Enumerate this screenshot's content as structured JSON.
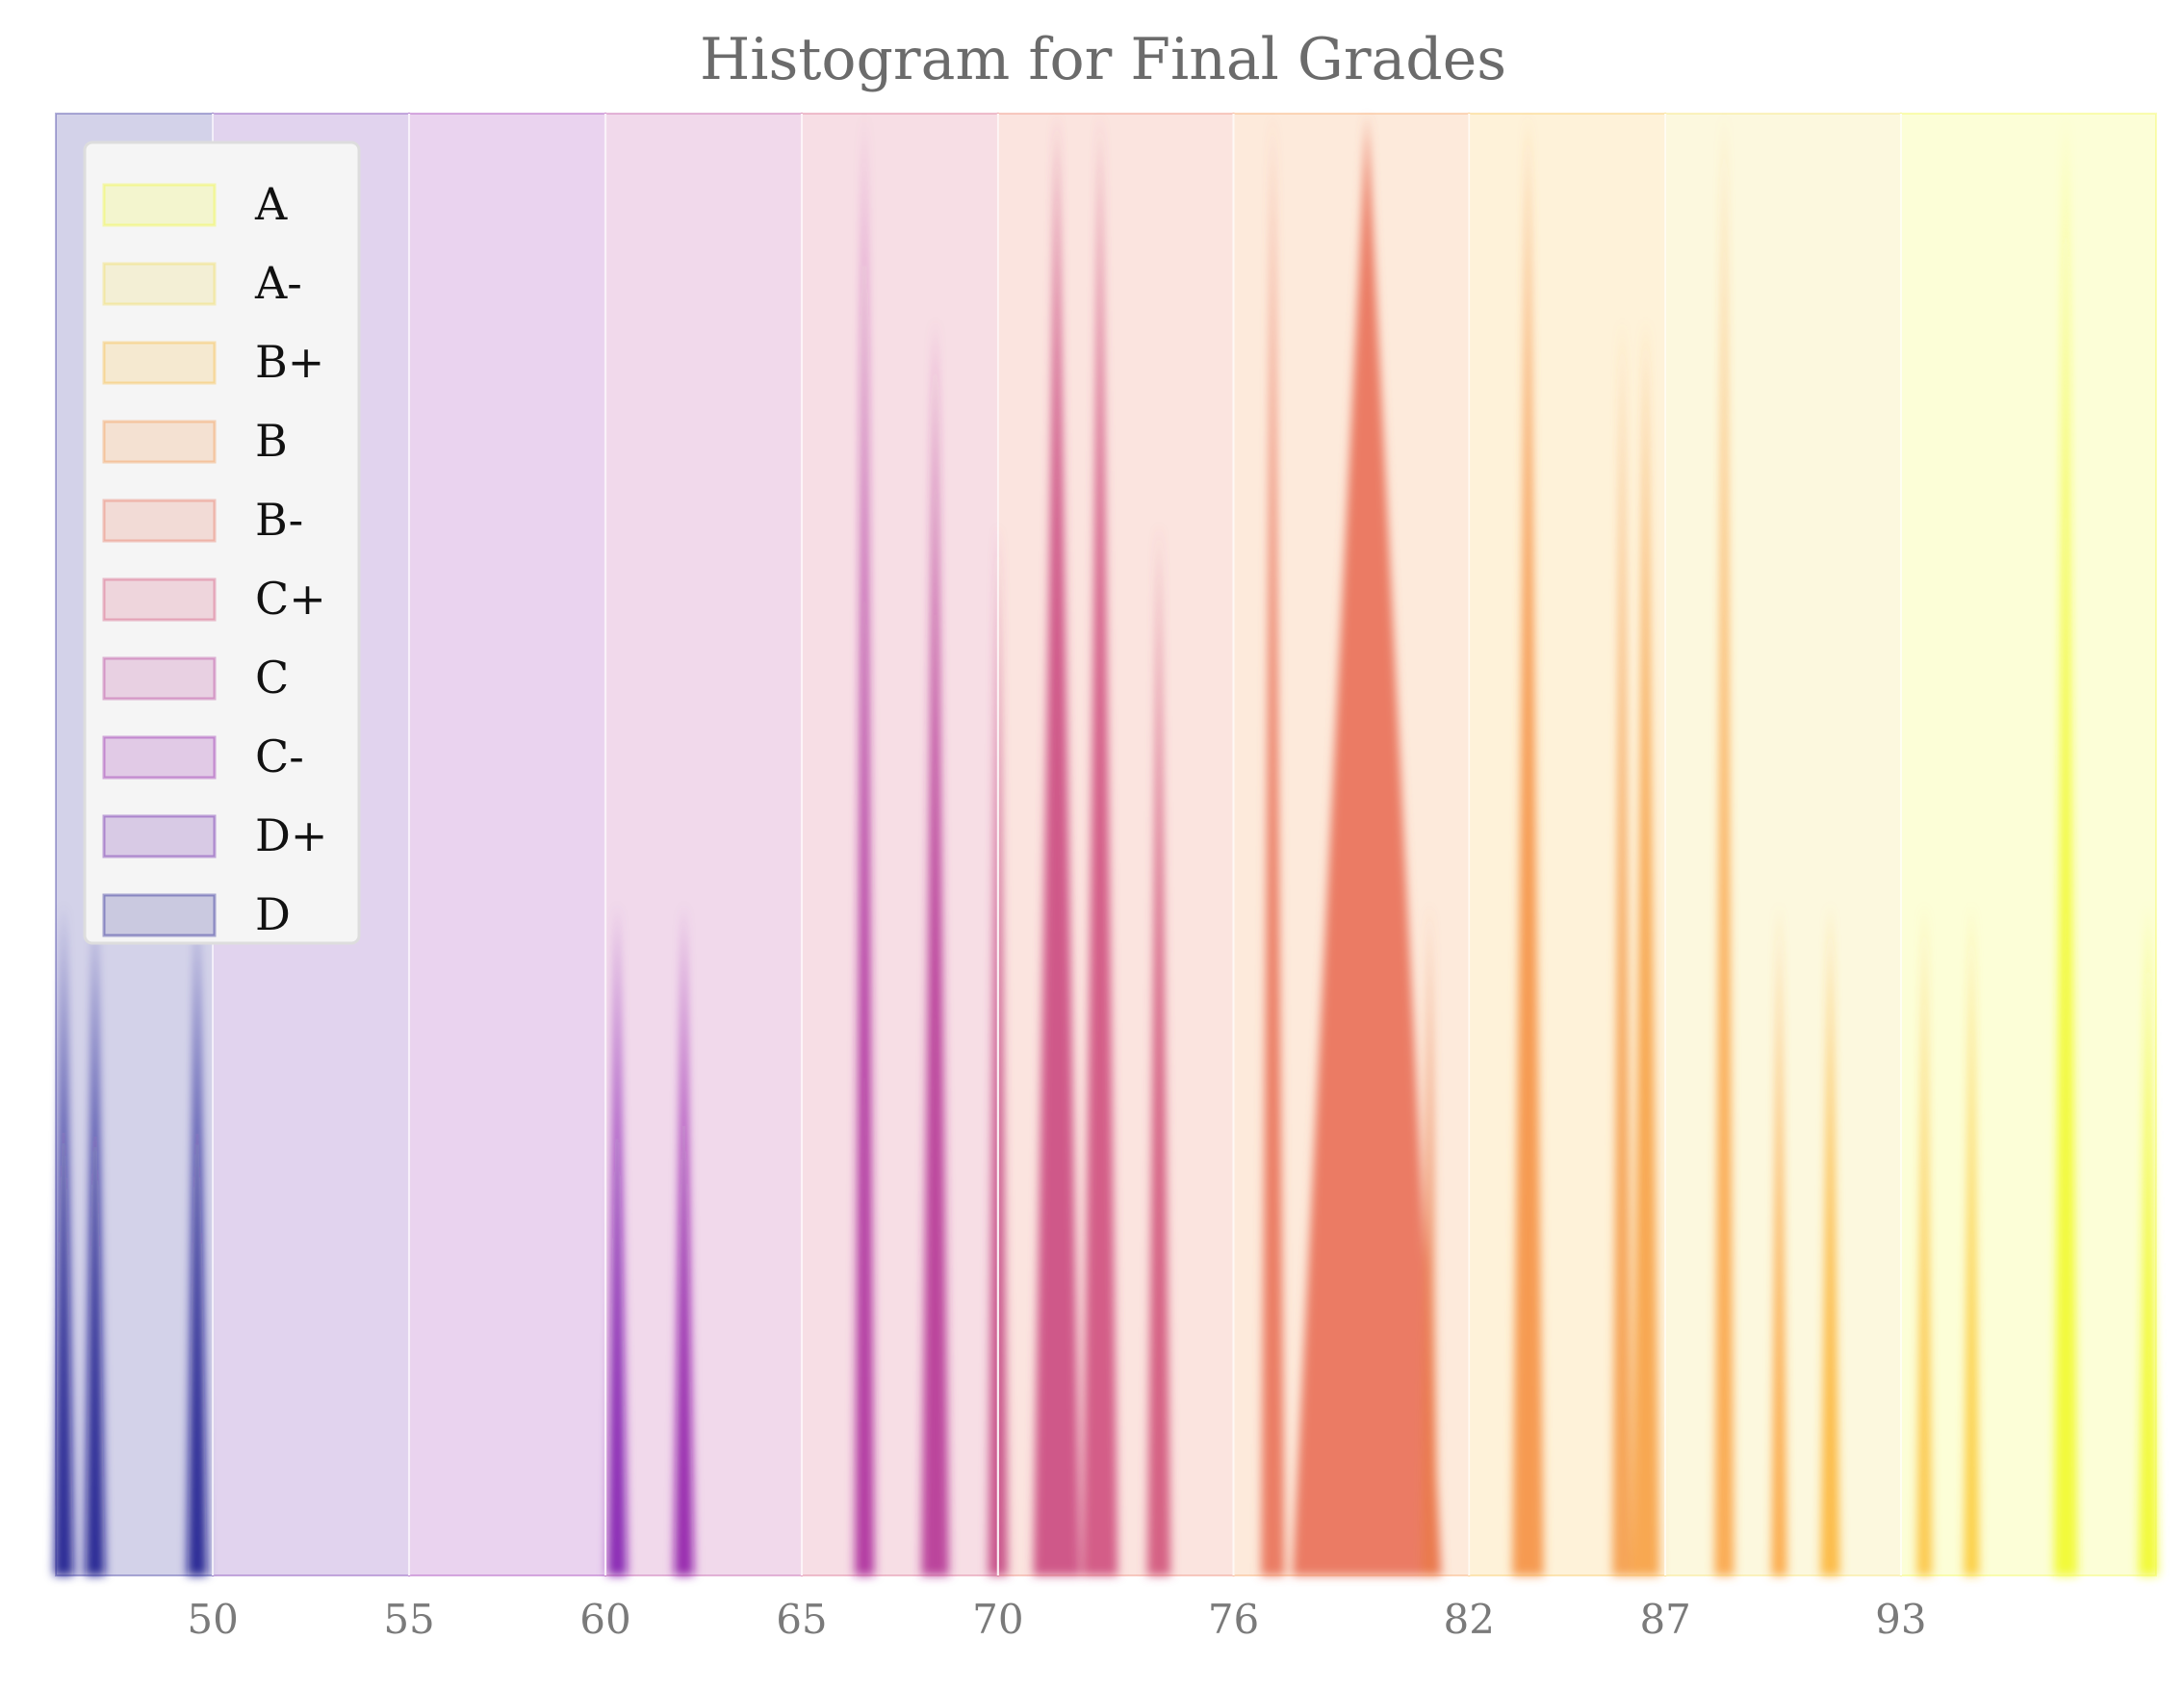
{
  "chart_data": {
    "type": "bar",
    "title": "Histogram for Final Grades",
    "xlabel": "",
    "ylabel": "",
    "xlim": [
      46,
      99.5
    ],
    "ylim": [
      0,
      1
    ],
    "grid": true,
    "legend_position": "top-left",
    "x_ticks": [
      50,
      55,
      60,
      65,
      70,
      76,
      82,
      87,
      93
    ],
    "grade_bands": [
      {
        "label": "D",
        "from": 46,
        "to": 50,
        "color": "#0d0887"
      },
      {
        "label": "D+",
        "from": 50,
        "to": 55,
        "color": "#5a0aa0"
      },
      {
        "label": "C-",
        "from": 55,
        "to": 60,
        "color": "#8a0da4"
      },
      {
        "label": "C",
        "from": 60,
        "to": 65,
        "color": "#b02a8f"
      },
      {
        "label": "C+",
        "from": 65,
        "to": 70,
        "color": "#d0466f"
      },
      {
        "label": "B-",
        "from": 70,
        "to": 76,
        "color": "#e8674f"
      },
      {
        "label": "B",
        "from": 76,
        "to": 82,
        "color": "#f48b38"
      },
      {
        "label": "B+",
        "from": 82,
        "to": 87,
        "color": "#f9b52c"
      },
      {
        "label": "A-",
        "from": 87,
        "to": 93,
        "color": "#f1d94a"
      },
      {
        "label": "A",
        "from": 93,
        "to": 99.5,
        "color": "#f0f921"
      }
    ],
    "legend_order": [
      "A",
      "A-",
      "B+",
      "B",
      "B-",
      "C+",
      "C",
      "C-",
      "D+",
      "D"
    ],
    "spikes": [
      {
        "x": 46.2,
        "value": 0.46,
        "color": "#0d0887",
        "width": 0.5
      },
      {
        "x": 47.0,
        "value": 0.46,
        "color": "#0d0887",
        "width": 0.5
      },
      {
        "x": 49.6,
        "value": 0.46,
        "color": "#0d0887",
        "width": 0.5
      },
      {
        "x": 60.3,
        "value": 0.46,
        "color": "#7a0cab",
        "width": 0.5
      },
      {
        "x": 62.0,
        "value": 0.46,
        "color": "#8a0da4",
        "width": 0.5
      },
      {
        "x": 66.6,
        "value": 1.0,
        "color": "#a72197",
        "width": 0.5
      },
      {
        "x": 68.4,
        "value": 0.86,
        "color": "#b02a8f",
        "width": 0.7
      },
      {
        "x": 70.0,
        "value": 0.72,
        "color": "#c13d7d",
        "width": 0.5
      },
      {
        "x": 71.5,
        "value": 1.0,
        "color": "#c8407a",
        "width": 1.2
      },
      {
        "x": 72.6,
        "value": 1.0,
        "color": "#cc4778",
        "width": 0.9
      },
      {
        "x": 74.1,
        "value": 0.72,
        "color": "#cf4b74",
        "width": 0.6
      },
      {
        "x": 77.0,
        "value": 1.0,
        "color": "#e76a50",
        "width": 0.6
      },
      {
        "x": 79.4,
        "value": 1.0,
        "color": "#e8674f",
        "width": 3.8
      },
      {
        "x": 81.0,
        "value": 0.46,
        "color": "#ea7b4a",
        "width": 0.4
      },
      {
        "x": 83.5,
        "value": 1.0,
        "color": "#f48b38",
        "width": 0.8
      },
      {
        "x": 85.9,
        "value": 0.86,
        "color": "#f49640",
        "width": 0.5
      },
      {
        "x": 86.5,
        "value": 0.86,
        "color": "#f79b3a",
        "width": 0.7
      },
      {
        "x": 88.5,
        "value": 1.0,
        "color": "#fa9f3c",
        "width": 0.5
      },
      {
        "x": 89.9,
        "value": 0.46,
        "color": "#fca035",
        "width": 0.4
      },
      {
        "x": 91.2,
        "value": 0.46,
        "color": "#fdb22e",
        "width": 0.5
      },
      {
        "x": 93.6,
        "value": 0.46,
        "color": "#fbbf35",
        "width": 0.4
      },
      {
        "x": 94.8,
        "value": 0.46,
        "color": "#fcc830",
        "width": 0.4
      },
      {
        "x": 97.2,
        "value": 1.0,
        "color": "#f0f921",
        "width": 0.6
      },
      {
        "x": 99.3,
        "value": 0.46,
        "color": "#f0f921",
        "width": 0.5
      }
    ]
  }
}
